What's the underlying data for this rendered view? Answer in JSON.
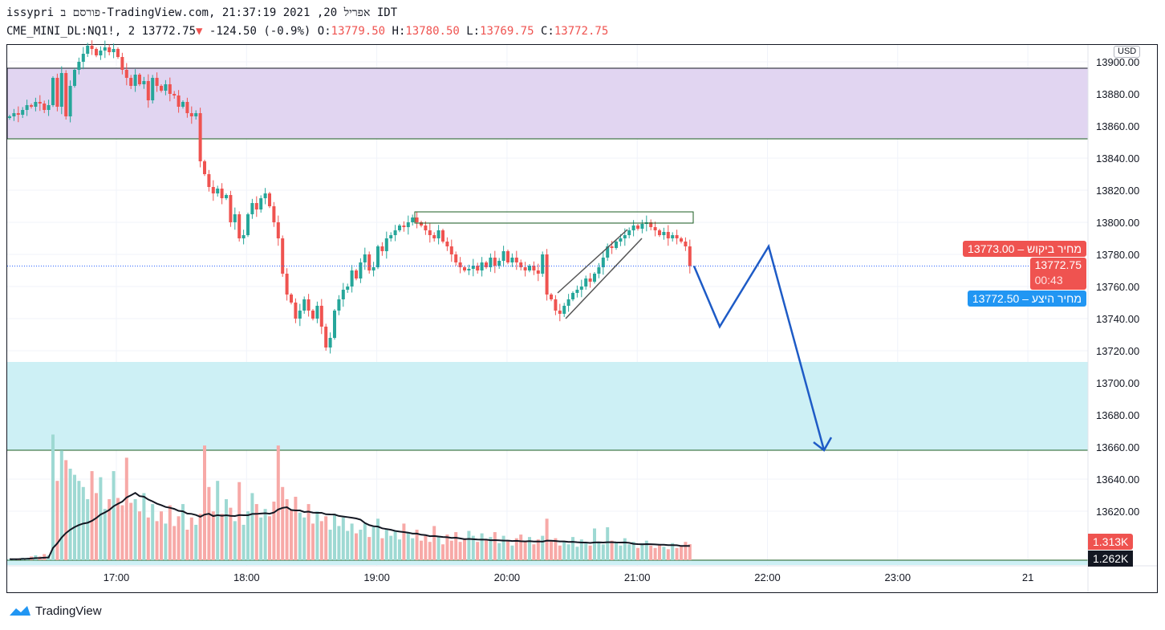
{
  "header": {
    "line1": "issypri פורסם ב-TradingView.com, אפריל 20, 2021 21:37:19 IDT",
    "symbol": "CME_MINI_DL:NQ1!, 2",
    "last": "13772.75",
    "change": "-124.50 (-0.9%)",
    "o_label": "O:",
    "o": "13779.50",
    "h_label": "H:",
    "h": "13780.50",
    "l_label": "L:",
    "l": "13769.75",
    "c_label": "C:",
    "c": "13772.75"
  },
  "currency": "USD",
  "price_labels": {
    "ask_text": "מחיר ביקוש",
    "ask": "13773.00",
    "last": "13772.75",
    "countdown": "00:43",
    "bid_text": "מחיר היצע",
    "bid": "13772.50",
    "volume": "1.313K",
    "volume_ma": "1.262K"
  },
  "brand": "TradingView",
  "colors": {
    "up": "#26a69a",
    "down": "#ef5350",
    "accent": "#2196f3",
    "zone_top": "#e1d5f1",
    "zone_bottom": "#cdf0f5"
  },
  "chart_data": {
    "type": "candlestick",
    "title": "CME_MINI_DL:NQ1!, 2",
    "start_time": "16:12",
    "interval_minutes": 2,
    "ylim": [
      13612,
      13918
    ],
    "yticks": [
      "13900.00",
      "13880.00",
      "13860.00",
      "13840.00",
      "13820.00",
      "13800.00",
      "13780.00",
      "13760.00",
      "13740.00",
      "13720.00",
      "13700.00",
      "13680.00",
      "13660.00",
      "13640.00",
      "13620.00"
    ],
    "xticks": [
      "17:00",
      "18:00",
      "19:00",
      "20:00",
      "21:00",
      "22:00",
      "23:00",
      "21"
    ],
    "close": [
      13866,
      13868,
      13867,
      13870,
      13873,
      13872,
      13875,
      13874,
      13870,
      13873,
      13890,
      13872,
      13893,
      13866,
      13885,
      13895,
      13900,
      13905,
      13910,
      13908,
      13904,
      13907,
      13909,
      13906,
      13908,
      13903,
      13895,
      13890,
      13885,
      13892,
      13886,
      13888,
      13876,
      13890,
      13885,
      13882,
      13886,
      13880,
      13879,
      13872,
      13875,
      13868,
      13866,
      13868,
      13838,
      13830,
      13822,
      13818,
      13821,
      13815,
      13817,
      13800,
      13805,
      13790,
      13792,
      13805,
      13812,
      13808,
      13815,
      13818,
      13810,
      13800,
      13790,
      13768,
      13755,
      13750,
      13740,
      13745,
      13752,
      13745,
      13740,
      13748,
      13735,
      13722,
      13728,
      13745,
      13752,
      13758,
      13760,
      13770,
      13765,
      13775,
      13780,
      13770,
      13772,
      13785,
      13782,
      13790,
      13792,
      13795,
      13798,
      13797,
      13800,
      13803,
      13800,
      13798,
      13795,
      13792,
      13790,
      13795,
      13788,
      13785,
      13780,
      13775,
      13772,
      13770,
      13771,
      13773,
      13770,
      13775,
      13772,
      13778,
      13773,
      13776,
      13782,
      13775,
      13778,
      13775,
      13772,
      13770,
      13773,
      13770,
      13768,
      13780,
      13755,
      13752,
      13745,
      13743,
      13748,
      13752,
      13756,
      13758,
      13760,
      13765,
      13763,
      13768,
      13772,
      13778,
      13785,
      13784,
      13788,
      13790,
      13792,
      13795,
      13798,
      13796,
      13799,
      13800,
      13797,
      13795,
      13792,
      13794,
      13790,
      13792,
      13790,
      13788,
      13785,
      13772.75
    ],
    "volume_k": [
      0.1,
      0.1,
      0.1,
      0.2,
      0.2,
      0.3,
      0.4,
      0.3,
      0.5,
      0.4,
      10.3,
      6.5,
      9.0,
      8.2,
      7.5,
      7.0,
      6.5,
      6.0,
      5.0,
      7.3,
      5.5,
      6.8,
      4.2,
      5.0,
      7.3,
      5.1,
      4.5,
      8.4,
      4.7,
      5.0,
      4.0,
      5.5,
      3.5,
      4.6,
      3.2,
      4.0,
      3.0,
      4.5,
      2.8,
      3.6,
      4.6,
      2.5,
      3.5,
      2.9,
      3.8,
      9.4,
      6.0,
      4.0,
      6.5,
      3.8,
      5.0,
      4.3,
      3.2,
      6.4,
      2.9,
      4.0,
      5.5,
      4.6,
      3.5,
      4.2,
      3.6,
      4.8,
      9.4,
      6.0,
      5.0,
      4.1,
      5.2,
      3.9,
      3.5,
      4.6,
      3.0,
      4.0,
      3.2,
      3.6,
      2.5,
      3.8,
      2.8,
      3.5,
      2.4,
      3.0,
      2.2,
      2.5,
      3.0,
      1.9,
      2.8,
      3.4,
      1.8,
      2.6,
      2.0,
      2.4,
      1.7,
      3.0,
      2.2,
      1.8,
      2.5,
      1.6,
      2.0,
      1.5,
      2.8,
      1.9,
      1.3,
      2.1,
      1.6,
      2.3,
      1.5,
      1.8,
      2.4,
      2.0,
      1.5,
      2.2,
      1.7,
      1.9,
      2.3,
      1.4,
      2.0,
      1.6,
      1.2,
      1.8,
      2.1,
      1.5,
      1.9,
      1.3,
      1.7,
      2.0,
      3.4,
      1.6,
      1.8,
      1.2,
      1.5,
      1.3,
      1.9,
      1.1,
      1.7,
      1.4,
      1.2,
      2.6,
      1.5,
      1.3,
      2.7,
      1.6,
      1.4,
      1.2,
      1.8,
      1.3,
      1.5,
      1.0,
      1.4,
      1.6,
      1.2,
      1.0,
      1.3,
      1.1,
      0.9,
      1.4,
      1.0,
      1.2,
      1.5,
      1.313
    ],
    "zones": [
      {
        "name": "resistance",
        "from": 13852,
        "to": 13896
      },
      {
        "name": "support",
        "from": 13658,
        "to": 13713
      }
    ],
    "level_box": [
      13799.5,
      13806.5
    ],
    "projection": [
      13772.75,
      13735,
      13785,
      13658
    ]
  }
}
